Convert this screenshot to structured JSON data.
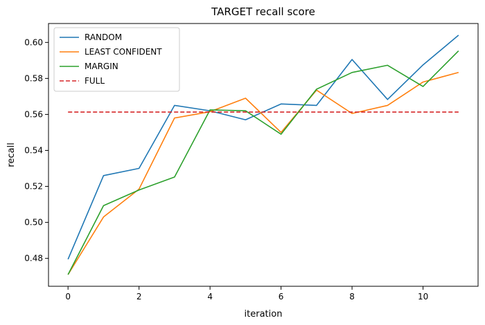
{
  "chart_data": {
    "type": "line",
    "title": "TARGET recall score",
    "xlabel": "iteration",
    "ylabel": "recall",
    "xlim": [
      -0.55,
      11.55
    ],
    "ylim": [
      0.4645,
      0.6105
    ],
    "xticks": [
      0,
      2,
      4,
      6,
      8,
      10
    ],
    "yticks": [
      0.48,
      0.5,
      0.52,
      0.54,
      0.56,
      0.58,
      0.6
    ],
    "ytick_labels": [
      "0.48",
      "0.50",
      "0.52",
      "0.54",
      "0.56",
      "0.58",
      "0.60"
    ],
    "x": [
      0,
      1,
      2,
      3,
      4,
      5,
      6,
      7,
      8,
      9,
      10,
      11
    ],
    "grid": false,
    "legend_position": "top-left",
    "series": [
      {
        "name": "RANDOM",
        "color": "#1f77b4",
        "dash": "solid",
        "values": [
          0.4795,
          0.526,
          0.53,
          0.565,
          0.562,
          0.557,
          0.5658,
          0.565,
          0.5905,
          0.5683,
          0.5875,
          0.604
        ]
      },
      {
        "name": "LEAST CONFIDENT",
        "color": "#ff7f0e",
        "dash": "solid",
        "values": [
          0.471,
          0.503,
          0.5185,
          0.558,
          0.5615,
          0.569,
          0.55,
          0.5735,
          0.5605,
          0.565,
          0.578,
          0.5833
        ]
      },
      {
        "name": "MARGIN",
        "color": "#2ca02c",
        "dash": "solid",
        "values": [
          0.471,
          0.5093,
          0.518,
          0.5252,
          0.5625,
          0.562,
          0.549,
          0.574,
          0.5833,
          0.5873,
          0.5755,
          0.5953
        ]
      },
      {
        "name": "FULL",
        "color": "#d62728",
        "dash": "dashed",
        "values": [
          0.5613,
          0.5613,
          0.5613,
          0.5613,
          0.5613,
          0.5613,
          0.5613,
          0.5613,
          0.5613,
          0.5613,
          0.5613,
          0.5613
        ]
      }
    ]
  }
}
